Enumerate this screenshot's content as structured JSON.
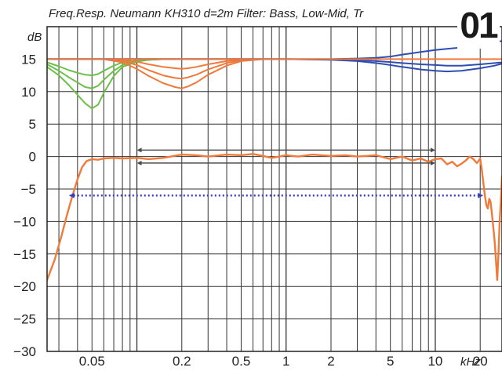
{
  "badge": "01",
  "chart_data": {
    "type": "line",
    "title": "Freq.Resp. Neumann KH310 d=2m Filter: Bass,  Low-Mid,  Tr",
    "ylabel": "dB",
    "xlabel": "kHz",
    "x_scale": "log",
    "xlim": [
      0.025,
      28
    ],
    "ylim": [
      -30,
      20
    ],
    "y_ticks": [
      {
        "value": 15,
        "label": "15"
      },
      {
        "value": 10,
        "label": "10"
      },
      {
        "value": 5,
        "label": "5"
      },
      {
        "value": 0,
        "label": "0"
      },
      {
        "value": -5,
        "label": "−5"
      },
      {
        "value": -10,
        "label": "−10"
      },
      {
        "value": -15,
        "label": "−15"
      },
      {
        "value": -20,
        "label": "−20"
      },
      {
        "value": -25,
        "label": "−25"
      },
      {
        "value": -30,
        "label": "−30"
      }
    ],
    "x_ticks": [
      {
        "value": 0.05,
        "label": "0.05"
      },
      {
        "value": 0.2,
        "label": "0.2"
      },
      {
        "value": 0.5,
        "label": "0.5"
      },
      {
        "value": 1,
        "label": "1"
      },
      {
        "value": 2,
        "label": "2"
      },
      {
        "value": 5,
        "label": "5"
      },
      {
        "value": 10,
        "label": "10"
      },
      {
        "value": 20,
        "label": "20"
      }
    ],
    "grid": true,
    "colors": {
      "main": "#f07a3a",
      "bass": "#6cc04a",
      "lowmid": "#f07a3a",
      "treble": "#2e4db3",
      "arrow": "#4a4a4a",
      "dotted": "#3a3fc0"
    },
    "series": [
      {
        "group": "response",
        "color": "main",
        "x": [
          0.025,
          0.028,
          0.031,
          0.034,
          0.037,
          0.04,
          0.043,
          0.046,
          0.05,
          0.055,
          0.06,
          0.07,
          0.08,
          0.1,
          0.12,
          0.15,
          0.2,
          0.25,
          0.3,
          0.4,
          0.5,
          0.6,
          0.7,
          0.8,
          1,
          1.2,
          1.5,
          2,
          2.5,
          3,
          4,
          5,
          6,
          7,
          8,
          9,
          10,
          11,
          12,
          13,
          14,
          15,
          16,
          17,
          18,
          19,
          20,
          20.5,
          21,
          21.5,
          22,
          22.5,
          23,
          23.5,
          24,
          24.5,
          25,
          25.5,
          26,
          26.5,
          27,
          27.5,
          28
        ],
        "y": [
          -19,
          -16,
          -12.5,
          -9,
          -6,
          -3.5,
          -1.6,
          -0.7,
          -0.4,
          -0.5,
          -0.3,
          -0.2,
          -0.3,
          -0.2,
          -0.4,
          -0.2,
          0.3,
          0.2,
          0,
          0.3,
          0.2,
          0.4,
          0.1,
          -0.2,
          0.2,
          0,
          0.3,
          0.1,
          0.2,
          0,
          0.2,
          -0.4,
          0,
          -0.6,
          -0.3,
          -0.8,
          -0.4,
          -0.3,
          -1.2,
          -0.8,
          -1.5,
          -1.1,
          -0.6,
          0,
          -0.4,
          -1,
          -0.3,
          -2,
          -4,
          -6,
          -7.5,
          -8,
          -6.5,
          -7,
          -9,
          -11,
          -13,
          -16,
          -19,
          -15,
          -10,
          -7,
          -3
        ]
      },
      {
        "group": "bass",
        "color": "bass",
        "x": [
          0.025,
          0.03,
          0.035,
          0.04,
          0.045,
          0.05,
          0.055,
          0.06,
          0.07,
          0.08,
          0.1,
          0.12,
          0.15
        ],
        "y": [
          14.5,
          13.9,
          13.3,
          12.9,
          12.6,
          12.5,
          12.7,
          13.2,
          14,
          14.5,
          14.8,
          14.9,
          15
        ]
      },
      {
        "group": "bass",
        "color": "bass",
        "x": [
          0.025,
          0.03,
          0.035,
          0.04,
          0.045,
          0.05,
          0.055,
          0.06,
          0.07,
          0.08,
          0.1,
          0.12,
          0.15
        ],
        "y": [
          14.2,
          13.2,
          12.2,
          11.4,
          10.7,
          10.5,
          10.9,
          11.8,
          13.2,
          14.1,
          14.7,
          14.9,
          15
        ]
      },
      {
        "group": "bass",
        "color": "bass",
        "x": [
          0.025,
          0.03,
          0.035,
          0.04,
          0.045,
          0.05,
          0.055,
          0.06,
          0.07,
          0.08,
          0.1,
          0.12,
          0.15
        ],
        "y": [
          13.8,
          12.5,
          11,
          9.5,
          8.2,
          7.4,
          8,
          9.8,
          12.4,
          13.8,
          14.6,
          14.9,
          15
        ]
      },
      {
        "group": "lowmid",
        "color": "lowmid",
        "x": [
          0.06,
          0.08,
          0.1,
          0.12,
          0.15,
          0.18,
          0.2,
          0.22,
          0.25,
          0.3,
          0.4,
          0.5,
          0.7
        ],
        "y": [
          15,
          14.9,
          14.6,
          14.2,
          13.8,
          13.6,
          13.5,
          13.6,
          13.8,
          14.2,
          14.7,
          14.9,
          15
        ]
      },
      {
        "group": "lowmid",
        "color": "lowmid",
        "x": [
          0.06,
          0.08,
          0.1,
          0.12,
          0.15,
          0.18,
          0.2,
          0.22,
          0.25,
          0.3,
          0.4,
          0.5,
          0.7
        ],
        "y": [
          15,
          14.7,
          14.1,
          13.3,
          12.5,
          12.1,
          12,
          12.2,
          12.6,
          13.4,
          14.4,
          14.8,
          15
        ]
      },
      {
        "group": "lowmid",
        "color": "lowmid",
        "x": [
          0.06,
          0.08,
          0.1,
          0.12,
          0.15,
          0.18,
          0.2,
          0.22,
          0.25,
          0.3,
          0.4,
          0.5,
          0.7
        ],
        "y": [
          15,
          14.5,
          13.5,
          12.4,
          11.3,
          10.7,
          10.5,
          10.8,
          11.4,
          12.6,
          14,
          14.7,
          15
        ]
      },
      {
        "group": "treble",
        "color": "treble",
        "x": [
          0.025,
          1,
          2,
          3,
          4,
          5,
          6,
          7,
          8,
          10,
          12,
          15,
          20,
          25,
          28
        ],
        "y": [
          15,
          15,
          15,
          15.1,
          15.2,
          15.4,
          15.7,
          15.9,
          16.1,
          16.4,
          16.6,
          16.8,
          17.3,
          17.6,
          17.8
        ]
      },
      {
        "group": "treble",
        "color": "treble",
        "x": [
          0.025,
          1,
          2,
          3,
          4,
          5,
          6,
          7,
          8,
          10,
          12,
          15,
          20,
          25,
          28
        ],
        "y": [
          15,
          15,
          14.95,
          14.85,
          14.7,
          14.55,
          14.4,
          14.3,
          14.2,
          14.1,
          14,
          14,
          14.2,
          14.4,
          14.5
        ]
      },
      {
        "group": "treble",
        "color": "treble",
        "x": [
          0.025,
          1,
          2,
          3,
          4,
          5,
          6,
          7,
          8,
          10,
          12,
          15,
          20,
          25,
          28
        ],
        "y": [
          15,
          15,
          14.9,
          14.7,
          14.4,
          14.1,
          13.8,
          13.6,
          13.4,
          13.2,
          13.1,
          13.2,
          13.6,
          14,
          14.3
        ]
      },
      {
        "group": "flat",
        "color": "lowmid",
        "x": [
          0.025,
          28
        ],
        "y": [
          15,
          15
        ]
      }
    ],
    "annotations": [
      {
        "kind": "arrow",
        "color": "arrow",
        "x1": 0.1,
        "x2": 10,
        "y": 1
      },
      {
        "kind": "arrow",
        "color": "arrow",
        "x1": 0.1,
        "x2": 10,
        "y": -1
      },
      {
        "kind": "dotted-arrow",
        "color": "dotted",
        "x1": 0.035,
        "x2": 21,
        "y": -6
      }
    ]
  }
}
